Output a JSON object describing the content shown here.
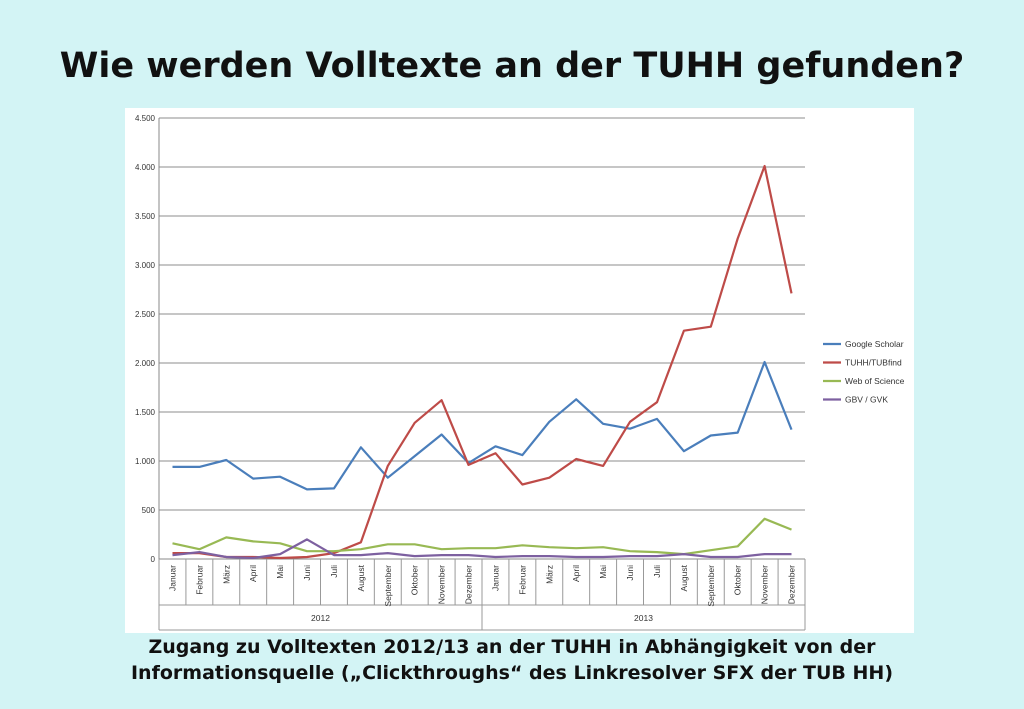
{
  "page": {
    "title": "Wie werden Volltexte an der TUHH gefunden?",
    "caption_line1": "Zugang zu Volltexten 2012/13 an der TUHH in Abhängigkeit von der",
    "caption_line2": "Informationsquelle („Clickthroughs“ des Linkresolver SFX der TUB HH)"
  },
  "chart_data": {
    "type": "line",
    "categories": [
      "Januar",
      "Februar",
      "März",
      "April",
      "Mai",
      "Juni",
      "Juli",
      "August",
      "September",
      "Oktober",
      "November",
      "Dezember",
      "Januar",
      "Februar",
      "März",
      "April",
      "Mai",
      "Juni",
      "Juli",
      "August",
      "September",
      "Oktober",
      "November",
      "Dezember"
    ],
    "groups": [
      {
        "label": "2012",
        "start": 0,
        "end": 11
      },
      {
        "label": "2013",
        "start": 12,
        "end": 23
      }
    ],
    "ylim": [
      0,
      4500
    ],
    "yticks": [
      0,
      500,
      1000,
      1500,
      2000,
      2500,
      3000,
      3500,
      4000,
      4500
    ],
    "ytick_labels": [
      "0",
      "500",
      "1.000",
      "1.500",
      "2.000",
      "2.500",
      "3.000",
      "3.500",
      "4.000",
      "4.500"
    ],
    "grid": true,
    "legend_position": "right",
    "series": [
      {
        "name": "Google Scholar",
        "color": "#4a7ebb",
        "values": [
          940,
          940,
          1010,
          820,
          840,
          710,
          720,
          1140,
          830,
          1050,
          1270,
          980,
          1150,
          1060,
          1400,
          1630,
          1380,
          1330,
          1430,
          1100,
          1260,
          1290,
          2010,
          1320
        ]
      },
      {
        "name": "TUHH/TUBfind",
        "color": "#be4b48",
        "values": [
          60,
          60,
          20,
          20,
          10,
          20,
          60,
          170,
          950,
          1390,
          1620,
          960,
          1080,
          760,
          830,
          1020,
          950,
          1400,
          1600,
          2330,
          2370,
          3270,
          4010,
          2710
        ]
      },
      {
        "name": "Web of Science",
        "color": "#98b954",
        "values": [
          160,
          100,
          220,
          180,
          160,
          80,
          80,
          100,
          150,
          150,
          100,
          110,
          110,
          140,
          120,
          110,
          120,
          80,
          70,
          50,
          90,
          130,
          410,
          300
        ]
      },
      {
        "name": "GBV / GVK",
        "color": "#7d60a0",
        "values": [
          40,
          70,
          20,
          10,
          50,
          200,
          40,
          40,
          60,
          30,
          40,
          40,
          20,
          30,
          30,
          20,
          20,
          30,
          30,
          50,
          20,
          20,
          50,
          50
        ]
      }
    ]
  }
}
